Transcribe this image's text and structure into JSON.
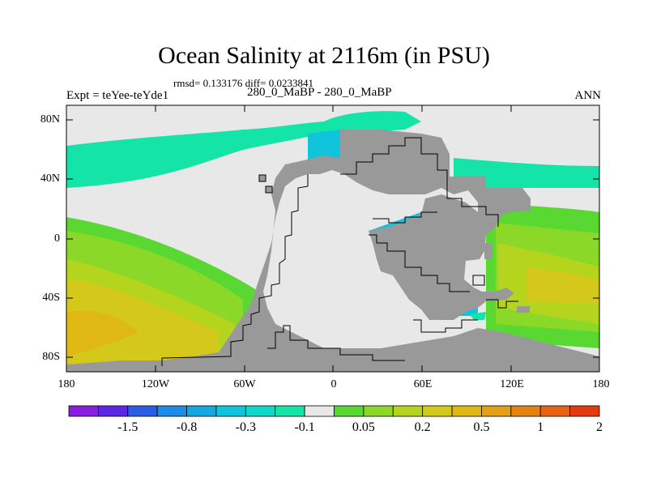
{
  "title": "Ocean Salinity at 2116m (in PSU)",
  "subtitle": "rmsd= 0.133176 diff= 0.0233841",
  "left_label": "Expt = teYee-teYde1",
  "center_label": "280_0_MaBP - 280_0_MaBP",
  "right_label": "ANN",
  "lat_ticks": [
    "80N",
    "40N",
    "0",
    "40S",
    "80S"
  ],
  "lon_ticks": [
    "180",
    "120W",
    "60W",
    "0",
    "60E",
    "120E",
    "180"
  ],
  "colorbar": {
    "colors": [
      "#8a1ee0",
      "#5a28e6",
      "#2a5ce6",
      "#1e8ce6",
      "#14a8e0",
      "#10c4dc",
      "#10d8c8",
      "#14e4a8",
      "#e8e8e8",
      "#5ad832",
      "#8cd828",
      "#b4d41e",
      "#d4c81a",
      "#e0b814",
      "#e4a014",
      "#e48212",
      "#e46414",
      "#e43a10"
    ],
    "labels": [
      "-1.5",
      "-0.8",
      "-0.3",
      "-0.1",
      "0.05",
      "0.2",
      "0.5",
      "1",
      "2"
    ]
  },
  "map_colors": {
    "land": "#999999",
    "neutral": "#e8e8e8",
    "teal": "#14e4a8",
    "cyan": "#10c4dc",
    "green": "#5ad832",
    "lightgreen": "#8cd828",
    "yellowgreen": "#b4d41e",
    "yellow": "#d4c81a",
    "gold": "#e0b814"
  }
}
